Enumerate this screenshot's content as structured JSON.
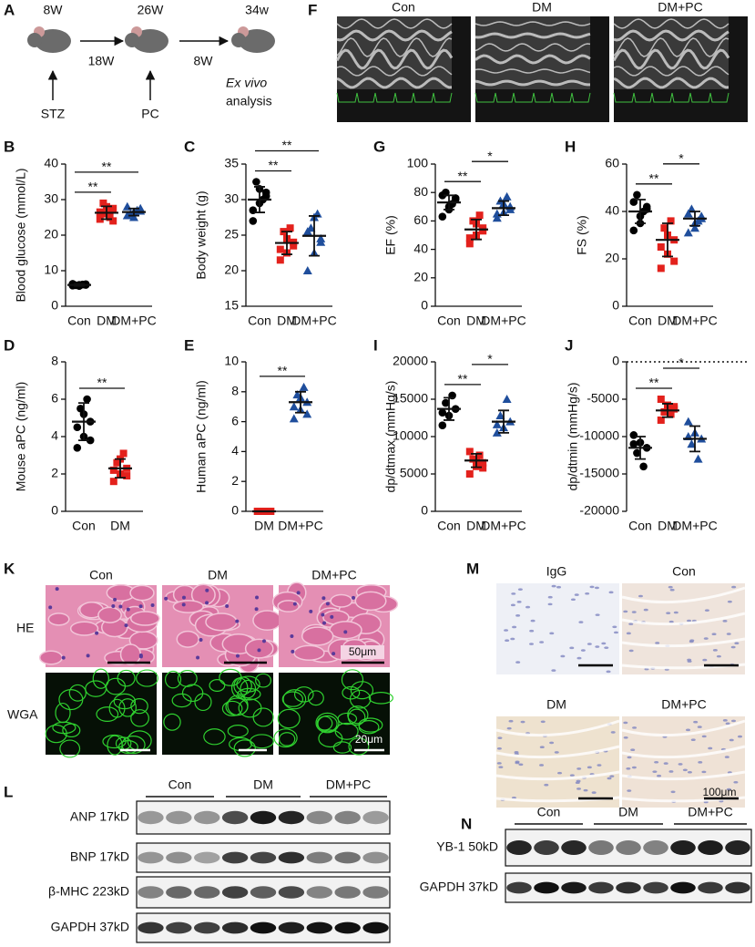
{
  "panel_labels": [
    "A",
    "F",
    "B",
    "C",
    "G",
    "H",
    "D",
    "E",
    "I",
    "J",
    "K",
    "M",
    "L",
    "N"
  ],
  "timeline": {
    "ages": [
      "8W",
      "26W",
      "34w"
    ],
    "intervals": [
      "18W",
      "8W"
    ],
    "treatments": [
      "STZ",
      "PC"
    ],
    "analysis": [
      "Ex vivo",
      "analysis"
    ]
  },
  "echo": {
    "groups": [
      "Con",
      "DM",
      "DM+PC"
    ]
  },
  "chart_data": [
    {
      "type": "scatter",
      "y_label": "Blood glucose (mmol/L)",
      "categories": [
        "Con",
        "DM",
        "DM+PC"
      ],
      "groups": [
        {
          "color": "#000000",
          "marker": "circle",
          "values": [
            5.8,
            6.0,
            6.2,
            5.9,
            6.1,
            6.3,
            5.7,
            6.0
          ],
          "mean": 6.0,
          "sd": 0.3
        },
        {
          "color": "#e3211c",
          "marker": "square",
          "values": [
            24.5,
            26.0,
            27.5,
            29.0,
            25.0,
            26.5,
            28.0,
            24.0
          ],
          "mean": 26.3,
          "sd": 1.8
        },
        {
          "color": "#1f4e9c",
          "marker": "triangle",
          "values": [
            25.5,
            26.5,
            27.5,
            26.0,
            27.0,
            28.0,
            25.0,
            26.8
          ],
          "mean": 26.5,
          "sd": 1.0
        }
      ],
      "ylim": [
        0,
        40
      ],
      "yticks": [
        0,
        10,
        20,
        30,
        40
      ],
      "comparisons": [
        {
          "label": "**",
          "between": [
            "Con",
            "DM"
          ]
        },
        {
          "label": "**",
          "between": [
            "Con",
            "DM+PC"
          ]
        }
      ]
    },
    {
      "type": "scatter",
      "y_label": "Body weight (g)",
      "categories": [
        "Con",
        "DM",
        "DM+PC"
      ],
      "groups": [
        {
          "color": "#000000",
          "marker": "circle",
          "values": [
            27.0,
            29.5,
            31.0,
            32.5,
            30.0,
            28.5,
            31.5,
            30.5
          ],
          "mean": 30.0,
          "sd": 1.8
        },
        {
          "color": "#e3211c",
          "marker": "square",
          "values": [
            21.5,
            22.5,
            24.0,
            25.5,
            26.0,
            23.0,
            24.5,
            23.5
          ],
          "mean": 23.9,
          "sd": 1.6
        },
        {
          "color": "#1f4e9c",
          "marker": "triangle",
          "values": [
            20.0,
            22.5,
            24.5,
            26.0,
            28.0,
            25.5,
            27.5,
            24.0
          ],
          "mean": 24.9,
          "sd": 2.8
        }
      ],
      "ylim": [
        15,
        35
      ],
      "yticks": [
        15,
        20,
        25,
        30,
        35
      ],
      "comparisons": [
        {
          "label": "**",
          "between": [
            "Con",
            "DM"
          ]
        },
        {
          "label": "**",
          "between": [
            "Con",
            "DM+PC"
          ]
        }
      ]
    },
    {
      "type": "scatter",
      "y_label": "EF (%)",
      "categories": [
        "Con",
        "DM",
        "DM+PC"
      ],
      "groups": [
        {
          "color": "#000000",
          "marker": "circle",
          "values": [
            63,
            70,
            75,
            80,
            72,
            78,
            68,
            76
          ],
          "mean": 73,
          "sd": 5
        },
        {
          "color": "#e3211c",
          "marker": "square",
          "values": [
            44,
            50,
            55,
            60,
            64,
            48,
            58,
            53
          ],
          "mean": 54,
          "sd": 7
        },
        {
          "color": "#1f4e9c",
          "marker": "triangle",
          "values": [
            62,
            66,
            70,
            74,
            77,
            65,
            72,
            68
          ],
          "mean": 69,
          "sd": 5
        }
      ],
      "ylim": [
        0,
        100
      ],
      "yticks": [
        0,
        20,
        40,
        60,
        80,
        100
      ],
      "comparisons": [
        {
          "label": "**",
          "between": [
            "Con",
            "DM"
          ]
        },
        {
          "label": "*",
          "between": [
            "DM",
            "DM+PC"
          ]
        }
      ]
    },
    {
      "type": "scatter",
      "y_label": "FS (%)",
      "categories": [
        "Con",
        "DM",
        "DM+PC"
      ],
      "groups": [
        {
          "color": "#000000",
          "marker": "circle",
          "values": [
            32,
            38,
            42,
            47,
            40,
            44,
            35,
            41
          ],
          "mean": 40,
          "sd": 5
        },
        {
          "color": "#e3211c",
          "marker": "square",
          "values": [
            16,
            22,
            28,
            33,
            36,
            25,
            30,
            19
          ],
          "mean": 28,
          "sd": 7
        },
        {
          "color": "#1f4e9c",
          "marker": "triangle",
          "values": [
            31,
            35,
            38,
            41,
            36,
            39,
            33,
            37
          ],
          "mean": 37,
          "sd": 3
        }
      ],
      "ylim": [
        0,
        60
      ],
      "yticks": [
        0,
        20,
        40,
        60
      ],
      "comparisons": [
        {
          "label": "**",
          "between": [
            "Con",
            "DM"
          ]
        },
        {
          "label": "*",
          "between": [
            "DM",
            "DM+PC"
          ]
        }
      ]
    },
    {
      "type": "scatter",
      "y_label": "Mouse aPC (ng/ml)",
      "categories": [
        "Con",
        "DM"
      ],
      "groups": [
        {
          "color": "#000000",
          "marker": "circle",
          "values": [
            3.4,
            4.0,
            4.8,
            5.5,
            6.0,
            4.5,
            5.2,
            3.8
          ],
          "mean": 4.8,
          "sd": 1.0
        },
        {
          "color": "#e3211c",
          "marker": "square",
          "values": [
            1.6,
            2.0,
            2.3,
            2.6,
            3.1,
            2.2,
            2.8,
            1.9
          ],
          "mean": 2.3,
          "sd": 0.5
        }
      ],
      "ylim": [
        0,
        8
      ],
      "yticks": [
        0,
        2,
        4,
        6,
        8
      ],
      "comparisons": [
        {
          "label": "**",
          "between": [
            "Con",
            "DM"
          ]
        }
      ]
    },
    {
      "type": "scatter",
      "y_label": "Human aPC (ng/ml)",
      "categories": [
        "DM",
        "DM+PC"
      ],
      "groups": [
        {
          "color": "#e3211c",
          "marker": "square",
          "values": [
            0,
            0,
            0,
            0,
            0,
            0,
            0,
            0
          ],
          "mean": 0,
          "sd": 0
        },
        {
          "color": "#1f4e9c",
          "marker": "triangle",
          "values": [
            6.2,
            6.8,
            7.3,
            7.8,
            8.3,
            7.0,
            7.6,
            6.5
          ],
          "mean": 7.3,
          "sd": 0.7
        }
      ],
      "ylim": [
        0,
        10
      ],
      "yticks": [
        0,
        2,
        4,
        6,
        8,
        10
      ],
      "comparisons": [
        {
          "label": "**",
          "between": [
            "DM",
            "DM+PC"
          ]
        }
      ]
    },
    {
      "type": "scatter",
      "y_label": "dp/dtmax (mmHg/s)",
      "categories": [
        "Con",
        "DM",
        "DM+PC"
      ],
      "groups": [
        {
          "color": "#000000",
          "marker": "circle",
          "values": [
            11500,
            12800,
            13700,
            14500,
            15500,
            13200
          ],
          "mean": 13700,
          "sd": 1500
        },
        {
          "color": "#e3211c",
          "marker": "square",
          "values": [
            5000,
            6000,
            6500,
            7000,
            7500,
            8000,
            6800,
            5800
          ],
          "mean": 6800,
          "sd": 900
        },
        {
          "color": "#1f4e9c",
          "marker": "triangle",
          "values": [
            10500,
            11200,
            12000,
            12800,
            15000,
            11600
          ],
          "mean": 12000,
          "sd": 1500
        }
      ],
      "ylim": [
        0,
        20000
      ],
      "yticks": [
        0,
        5000,
        10000,
        15000,
        20000
      ],
      "comparisons": [
        {
          "label": "**",
          "between": [
            "Con",
            "DM"
          ]
        },
        {
          "label": "*",
          "between": [
            "DM",
            "DM+PC"
          ]
        }
      ]
    },
    {
      "type": "scatter",
      "y_label": "dp/dtmin (mmHg/s)",
      "categories": [
        "Con",
        "DM",
        "DM+PC"
      ],
      "groups": [
        {
          "color": "#000000",
          "marker": "circle",
          "values": [
            -9800,
            -10800,
            -11500,
            -12200,
            -14000,
            -11000
          ],
          "mean": -11500,
          "sd": 1500
        },
        {
          "color": "#e3211c",
          "marker": "square",
          "values": [
            -5000,
            -5800,
            -6300,
            -6700,
            -7000,
            -7800,
            -6200,
            -6000
          ],
          "mean": -6500,
          "sd": 900
        },
        {
          "color": "#1f4e9c",
          "marker": "triangle",
          "values": [
            -8000,
            -9500,
            -10300,
            -11000,
            -13000,
            -10000
          ],
          "mean": -10300,
          "sd": 1700
        }
      ],
      "ylim": [
        -20000,
        0
      ],
      "yticks": [
        -20000,
        -15000,
        -10000,
        -5000,
        0
      ],
      "hline": 0,
      "comparisons": [
        {
          "label": "**",
          "between": [
            "Con",
            "DM"
          ]
        },
        {
          "label": "*",
          "between": [
            "DM",
            "DM+PC"
          ]
        }
      ]
    }
  ],
  "histology": {
    "groups": [
      "Con",
      "DM",
      "DM+PC"
    ],
    "stains": [
      "HE",
      "WGA"
    ],
    "scale_bars": [
      "50μm",
      "20μm"
    ]
  },
  "ihc": {
    "groups": [
      "IgG",
      "Con",
      "DM",
      "DM+PC"
    ],
    "scale_bar": "100μm"
  },
  "western_L": {
    "groups": [
      "Con",
      "DM",
      "DM+PC"
    ],
    "rows": [
      "ANP 17kD",
      "BNP 17kD",
      "β-MHC 223kD",
      "GAPDH 37kD"
    ]
  },
  "western_N": {
    "groups": [
      "Con",
      "DM",
      "DM+PC"
    ],
    "rows": [
      "YB-1 50kD",
      "GAPDH 37kD"
    ]
  }
}
